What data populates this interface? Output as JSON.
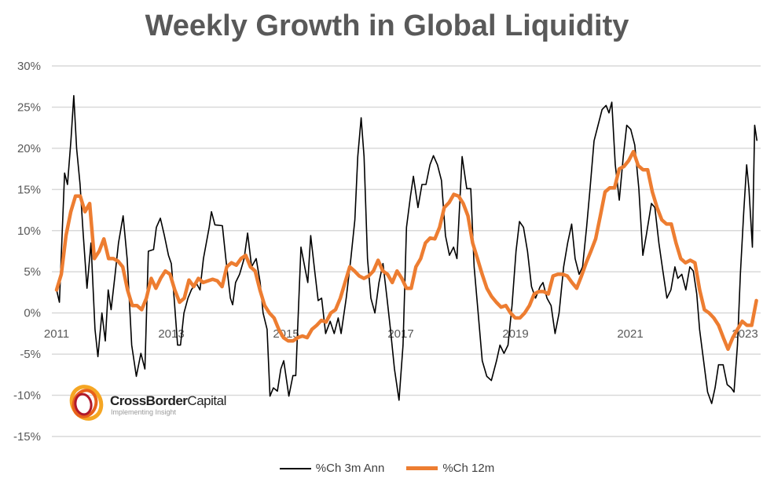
{
  "chart_data": {
    "type": "line",
    "title": "Weekly Growth in Global Liquidity",
    "xlabel": "",
    "ylabel": "",
    "ylim": [
      -15,
      30
    ],
    "yticks": [
      "30%",
      "25%",
      "20%",
      "15%",
      "10%",
      "5%",
      "0%",
      "-5%",
      "-10%",
      "-15%"
    ],
    "ytick_values": [
      30,
      25,
      20,
      15,
      10,
      5,
      0,
      -5,
      -10,
      -15
    ],
    "xlim": [
      2011,
      2023.3
    ],
    "xticks": [
      "2011",
      "2013",
      "2015",
      "2017",
      "2019",
      "2021",
      "2023"
    ],
    "xtick_values": [
      2011,
      2013,
      2015,
      2017,
      2019,
      2021,
      2023
    ],
    "grid": "horizontal",
    "legend_position": "bottom",
    "series": [
      {
        "name": "%Ch 3m Ann",
        "color": "#000000",
        "x": [
          2011,
          2011.05,
          2011.14,
          2011.19,
          2011.25,
          2011.3,
          2011.35,
          2011.41,
          2011.46,
          2011.53,
          2011.6,
          2011.67,
          2011.72,
          2011.79,
          2011.85,
          2011.9,
          2011.95,
          2012.02,
          2012.08,
          2012.16,
          2012.23,
          2012.31,
          2012.39,
          2012.47,
          2012.54,
          2012.6,
          2012.69,
          2012.74,
          2012.81,
          2012.88,
          2012.95,
          2013,
          2013.05,
          2013.11,
          2013.16,
          2013.22,
          2013.29,
          2013.35,
          2013.43,
          2013.5,
          2013.56,
          2013.66,
          2013.7,
          2013.76,
          2013.89,
          2013.95,
          2014.03,
          2014.07,
          2014.12,
          2014.19,
          2014.27,
          2014.33,
          2014.4,
          2014.48,
          2014.55,
          2014.6,
          2014.67,
          2014.72,
          2014.78,
          2014.85,
          2014.91,
          2014.96,
          2015.05,
          2015.12,
          2015.17,
          2015.26,
          2015.34,
          2015.38,
          2015.43,
          2015.5,
          2015.56,
          2015.62,
          2015.69,
          2015.77,
          2015.84,
          2015.91,
          2015.96,
          2016.05,
          2016.13,
          2016.2,
          2016.25,
          2016.31,
          2016.36,
          2016.42,
          2016.48,
          2016.55,
          2016.62,
          2016.69,
          2016.76,
          2016.82,
          2016.89,
          2016.97,
          2017.04,
          2017.1,
          2017.17,
          2017.22,
          2017.3,
          2017.37,
          2017.44,
          2017.51,
          2017.57,
          2017.64,
          2017.71,
          2017.78,
          2017.85,
          2017.92,
          2017.98,
          2018.07,
          2018.15,
          2018.22,
          2018.28,
          2018.35,
          2018.42,
          2018.5,
          2018.58,
          2018.67,
          2018.73,
          2018.8,
          2018.87,
          2018.94,
          2019.01,
          2019.07,
          2019.14,
          2019.21,
          2019.28,
          2019.35,
          2019.43,
          2019.48,
          2019.55,
          2019.62,
          2019.69,
          2019.76,
          2019.84,
          2019.91,
          2019.98,
          2020.04,
          2020.11,
          2020.17,
          2020.24,
          2020.3,
          2020.37,
          2020.44,
          2020.51,
          2020.58,
          2020.63,
          2020.68,
          2020.74,
          2020.81,
          2020.88,
          2020.94,
          2021.01,
          2021.08,
          2021.15,
          2021.22,
          2021.28,
          2021.37,
          2021.43,
          2021.5,
          2021.57,
          2021.64,
          2021.71,
          2021.78,
          2021.83,
          2021.9,
          2021.97,
          2022.04,
          2022.1,
          2022.16,
          2022.21,
          2022.28,
          2022.35,
          2022.42,
          2022.48,
          2022.54,
          2022.62,
          2022.69,
          2022.76,
          2022.81,
          2022.87,
          2022.92,
          2022.98,
          2023.03,
          2023.07,
          2023.13,
          2023.17,
          2023.21
        ],
        "values": [
          2.8,
          1.3,
          17,
          15.6,
          21,
          26.4,
          20,
          15.6,
          10,
          3,
          8.5,
          -2,
          -5.3,
          0,
          -3.4,
          2.8,
          0.4,
          4.7,
          8.5,
          11.8,
          6.6,
          -3.9,
          -7.7,
          -4.9,
          -6.8,
          7.5,
          7.7,
          10.4,
          11.5,
          9.4,
          7,
          6,
          1.8,
          -3.9,
          -3.9,
          0,
          1.8,
          2.8,
          3.7,
          2.8,
          6.6,
          10.4,
          12.3,
          10.7,
          10.6,
          6.6,
          1.8,
          1,
          3.7,
          4.7,
          6.6,
          9.7,
          5.6,
          6.6,
          3.7,
          0,
          -2,
          -10.1,
          -9.1,
          -9.5,
          -6.8,
          -5.8,
          -10.1,
          -7.6,
          -7.6,
          8,
          5.1,
          3.7,
          9.4,
          5.1,
          1.5,
          1.8,
          -2.5,
          -1,
          -2.5,
          -0.6,
          -2.5,
          1.8,
          6.6,
          11.3,
          19,
          23.7,
          19,
          6.6,
          1.8,
          0,
          3.7,
          6,
          1.8,
          -2,
          -6.8,
          -10.6,
          -3.9,
          10.4,
          14.2,
          16.6,
          12.8,
          15.6,
          15.6,
          18,
          19.1,
          18,
          16.1,
          9.4,
          7,
          8,
          6.6,
          19,
          15.1,
          15.1,
          5.6,
          0,
          -5.8,
          -7.7,
          -8.2,
          -5.8,
          -3.9,
          -4.9,
          -3.9,
          0.9,
          7.5,
          11.1,
          10.4,
          7.5,
          3.2,
          1.8,
          3.2,
          3.7,
          1.8,
          0.9,
          -2.5,
          0,
          5.6,
          8.5,
          10.8,
          6.6,
          4.7,
          5.6,
          10.4,
          15.1,
          20.9,
          22.8,
          24.7,
          25.2,
          24.3,
          25.6,
          18,
          13.7,
          19,
          22.8,
          22.3,
          20.4,
          15.1,
          7,
          9.4,
          13.3,
          12.8,
          8.5,
          5.1,
          1.8,
          2.8,
          5.6,
          4.2,
          4.7,
          2.8,
          5.6,
          5.1,
          2.3,
          -2,
          -5.8,
          -9.6,
          -11,
          -9.1,
          -6.3,
          -6.3,
          -8.7,
          -9.1,
          -9.6,
          -3.9,
          4.7,
          12.3,
          18,
          15.1,
          8,
          22.8,
          20.9
        ]
      },
      {
        "name": "%Ch 12m",
        "color": "#ED7D31",
        "x_start": 2011,
        "x_end": 2023.2,
        "values": [
          2.8,
          4.7,
          9.4,
          12.3,
          14.2,
          14.2,
          12.3,
          13.3,
          6.6,
          7.5,
          9,
          6.6,
          6.6,
          6.3,
          5.6,
          2.8,
          0.9,
          0.9,
          0.4,
          1.8,
          4.2,
          3,
          4.2,
          5.1,
          4.7,
          2.8,
          1.3,
          1.8,
          4,
          3.2,
          4.2,
          3.7,
          3.9,
          4.1,
          3.9,
          3.2,
          5.6,
          6.1,
          5.8,
          6.6,
          7,
          5.6,
          5.1,
          2.8,
          0.9,
          0,
          -0.6,
          -2,
          -3,
          -3.4,
          -3.4,
          -3,
          -2.8,
          -3,
          -2,
          -1.5,
          -0.9,
          -1.1,
          0,
          0.4,
          1.8,
          3.7,
          5.6,
          5.1,
          4.5,
          4.2,
          4.5,
          5.1,
          6.4,
          5.1,
          4.7,
          3.7,
          5.1,
          4.2,
          3,
          3,
          5.6,
          6.6,
          8.5,
          9.1,
          9,
          10.4,
          12.8,
          13.4,
          14.4,
          14.2,
          13.3,
          11.8,
          8.5,
          6.6,
          4.7,
          3,
          2,
          1.3,
          0.7,
          0.9,
          0,
          -0.6,
          -0.6,
          0,
          0.9,
          2.3,
          2.6,
          2.6,
          2.3,
          4.5,
          4.7,
          4.7,
          4.5,
          3.7,
          3,
          4.5,
          6.1,
          7.5,
          9,
          11.8,
          14.7,
          15.2,
          15.2,
          17.5,
          17.8,
          18.5,
          19.6,
          17.9,
          17.4,
          17.4,
          14.7,
          12.8,
          11.3,
          10.8,
          10.8,
          8.5,
          6.6,
          6.1,
          6.4,
          6.1,
          2.8,
          0.4,
          0,
          -0.6,
          -1.5,
          -3,
          -4.4,
          -3,
          -2,
          -1,
          -1.5,
          -1.5,
          1.5
        ]
      }
    ]
  },
  "logo": {
    "name_bold": "CrossBorder",
    "name_regular": "Capital",
    "tagline": "Implementing Insight"
  }
}
